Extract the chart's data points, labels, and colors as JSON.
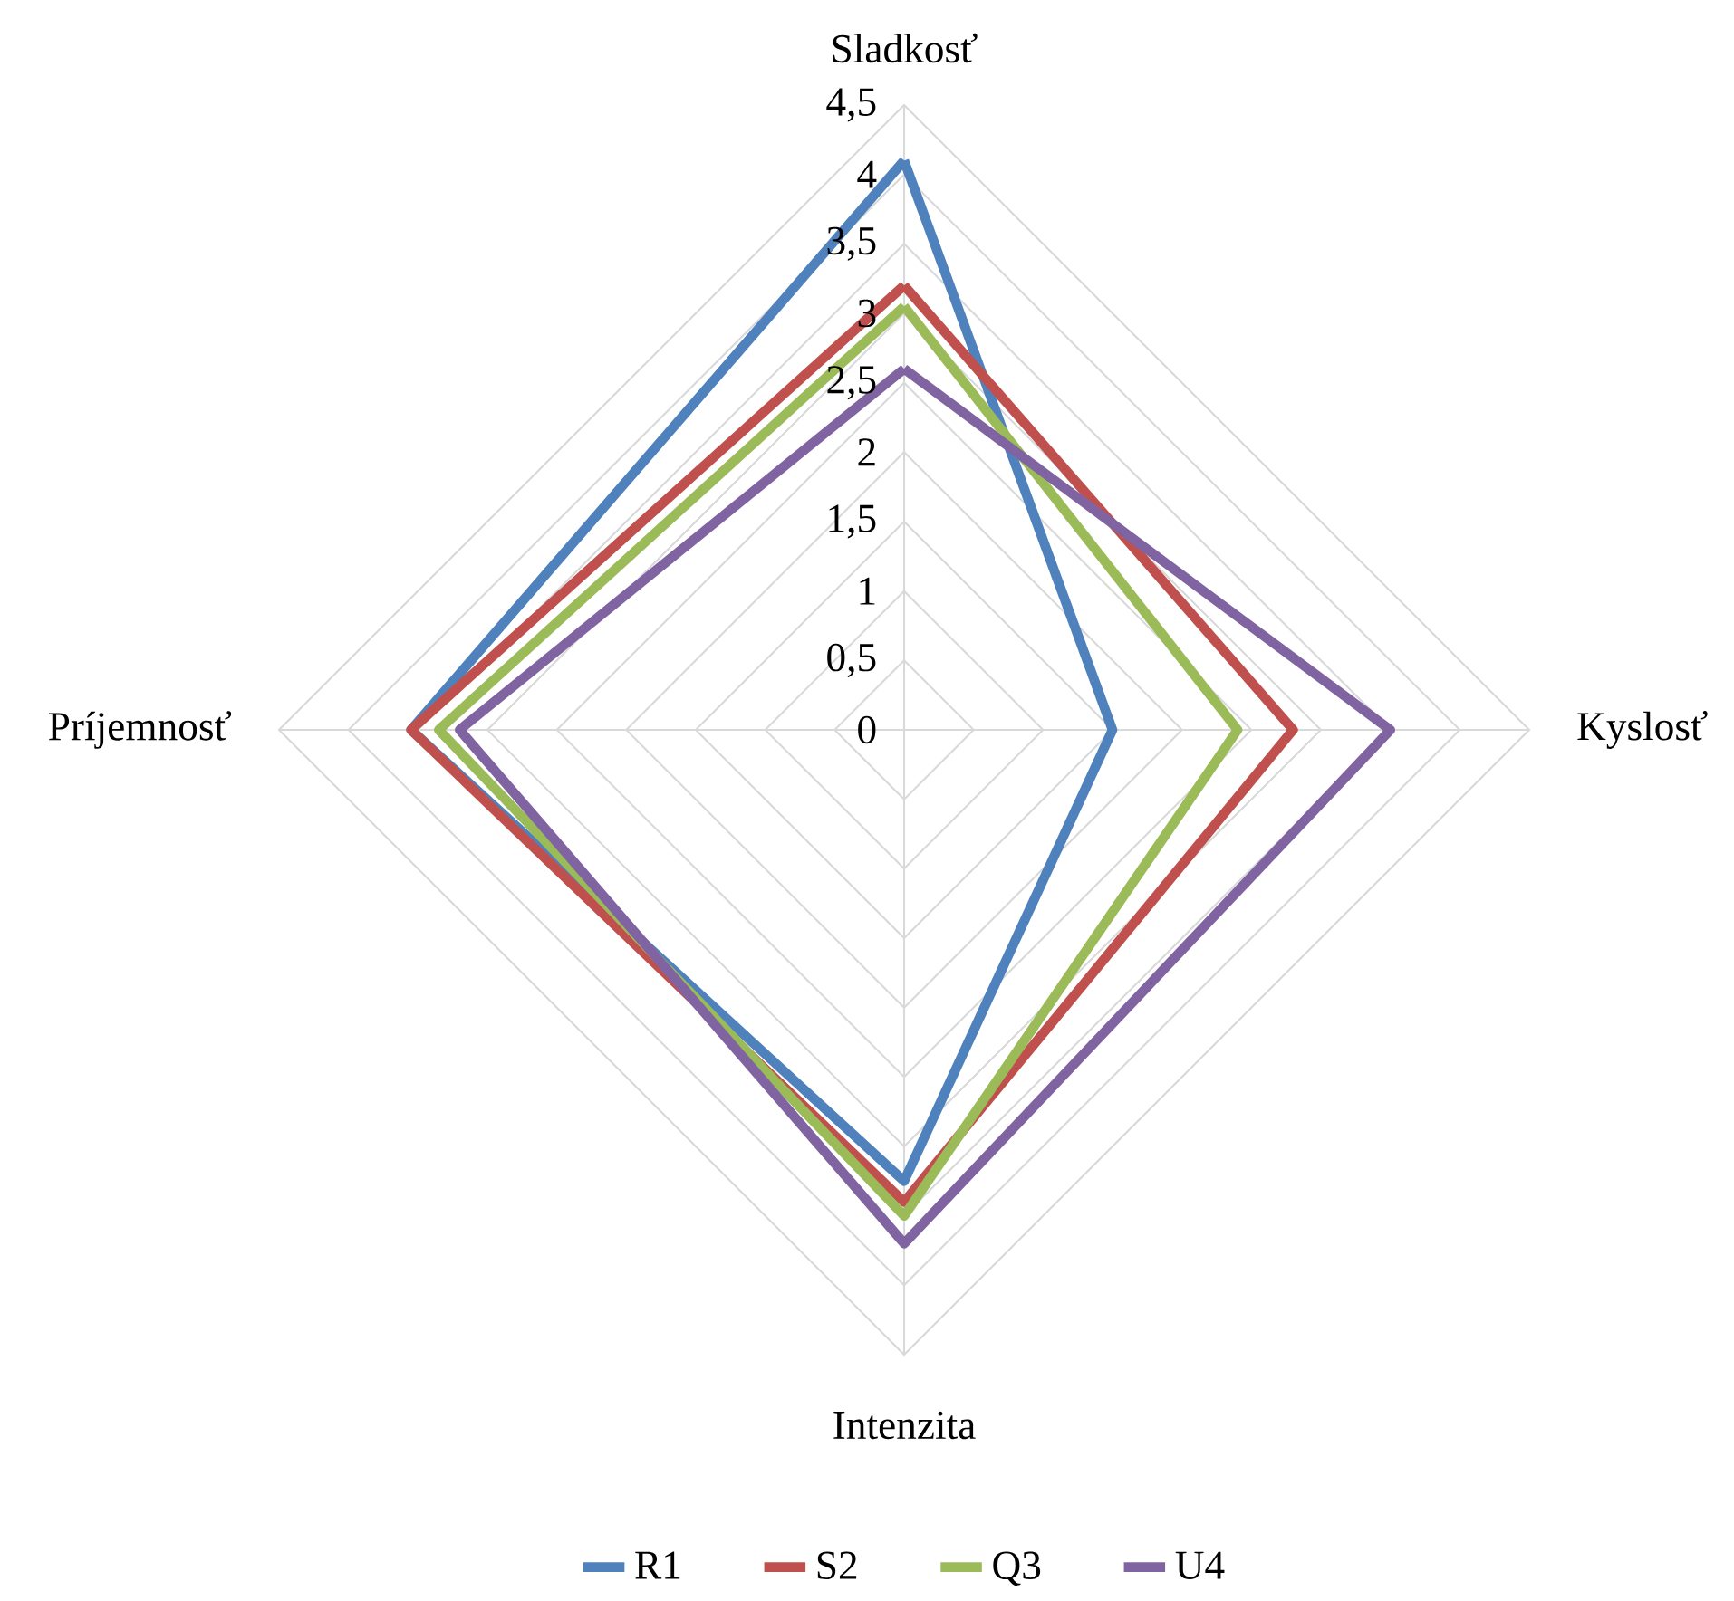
{
  "chart_data": {
    "type": "radar",
    "categories": [
      "Sladkosť",
      "Kyslosť",
      "Intenzita",
      "Príjemnosť"
    ],
    "series": [
      {
        "name": "R1",
        "color": "#4f81bd",
        "values": [
          4.1,
          1.5,
          3.25,
          3.55
        ]
      },
      {
        "name": "S2",
        "color": "#c0504d",
        "values": [
          3.2,
          2.8,
          3.4,
          3.55
        ]
      },
      {
        "name": "Q3",
        "color": "#9bbb59",
        "values": [
          3.05,
          2.4,
          3.5,
          3.35
        ]
      },
      {
        "name": "U4",
        "color": "#8064a2",
        "values": [
          2.6,
          3.5,
          3.7,
          3.2
        ]
      }
    ],
    "ylim": [
      0,
      4.5
    ],
    "yticks": [
      0,
      {
        "value": 0.5,
        "label": "0,5"
      },
      1,
      {
        "value": 1.5,
        "label": "1,5"
      },
      2,
      {
        "value": 2.5,
        "label": "2,5"
      },
      3,
      {
        "value": 3.5,
        "label": "3,5"
      },
      4,
      {
        "value": 4.5,
        "label": "4,5"
      }
    ],
    "grid": true,
    "legend": "bottom",
    "marker": "none",
    "line_style": "solid"
  }
}
